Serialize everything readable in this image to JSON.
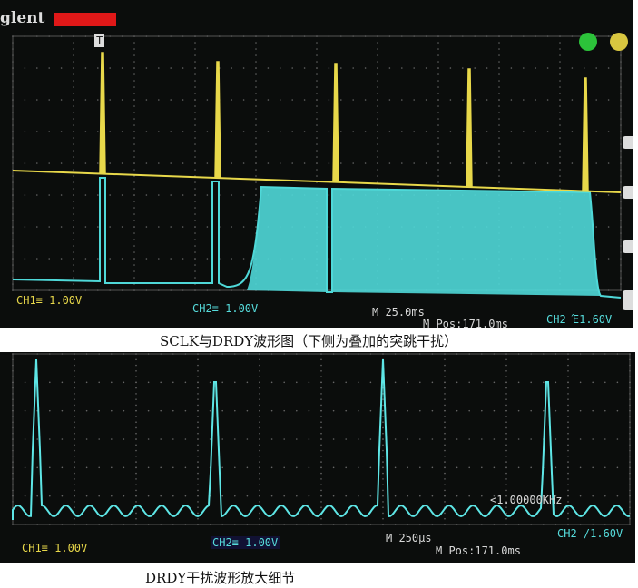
{
  "top_scope": {
    "brand": "glent",
    "ch1_scale": "CH1≡ 1.00V",
    "ch2_scale": "CH2≡ 1.00V",
    "timebase": "M 25.0ms",
    "position": "M Pos:171.0ms",
    "trigger": "CH2 Έ1.60V",
    "trigger_marker": "T",
    "colors": {
      "ch1": "#e8d84a",
      "ch2": "#4fd8d8",
      "run_indicator": "#e01818"
    }
  },
  "top_caption": "SCLK与DRDY波形图（下侧为叠加的突跳干扰）",
  "bottom_scope": {
    "ch1_scale": "CH1≡ 1.00V",
    "ch2_scale": "CH2≡ 1.00V",
    "timebase": "M 250μs",
    "position": "M Pos:171.0ms",
    "trigger": "CH2 /1.60V",
    "frequency": "<1.00000KHz"
  },
  "bottom_caption": "DRDY干扰波形放大细节"
}
